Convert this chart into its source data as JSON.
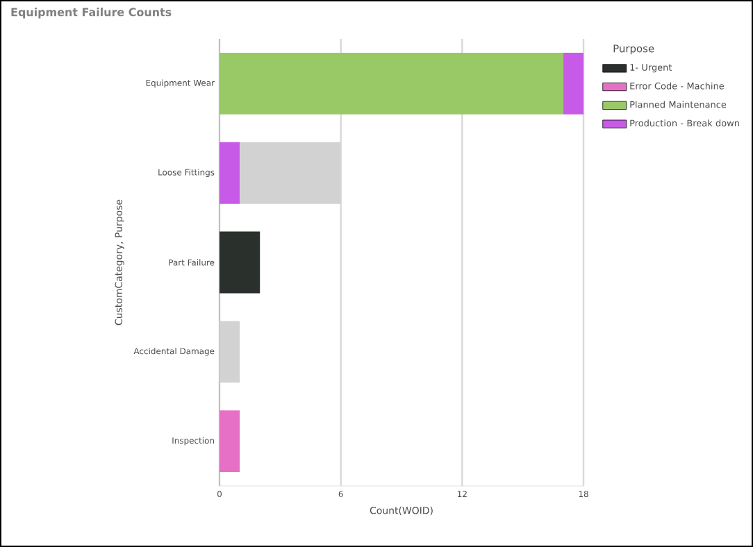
{
  "chart_data": {
    "type": "bar",
    "orientation": "horizontal",
    "stacked": true,
    "title": "Equipment Failure Counts",
    "xlabel": "Count(WOID)",
    "ylabel": "CustomCategory, Purpose",
    "legend_title": "Purpose",
    "categories": [
      "Equipment Wear",
      "Loose Fittings",
      "Part Failure",
      "Accidental Damage",
      "Inspection"
    ],
    "series": [
      {
        "name": "1- Urgent",
        "color": "#2a312d",
        "values": [
          null,
          null,
          2,
          null,
          null
        ]
      },
      {
        "name": "Error Code - Machine",
        "color": "#e770c7",
        "values": [
          null,
          null,
          null,
          null,
          1
        ]
      },
      {
        "name": "Planned Maintenance",
        "color": "#99c866",
        "values": [
          17,
          null,
          null,
          null,
          null
        ]
      },
      {
        "name": "Production - Break down",
        "color": "#c75ae6",
        "values": [
          1,
          1,
          null,
          null,
          null
        ]
      },
      {
        "color": "#d2d2d2",
        "values": [
          null,
          5,
          null,
          1,
          null
        ]
      }
    ],
    "xlim": [
      0,
      18
    ],
    "xticks": [
      0,
      6,
      12,
      18
    ],
    "grid": "x",
    "legend": "right"
  }
}
